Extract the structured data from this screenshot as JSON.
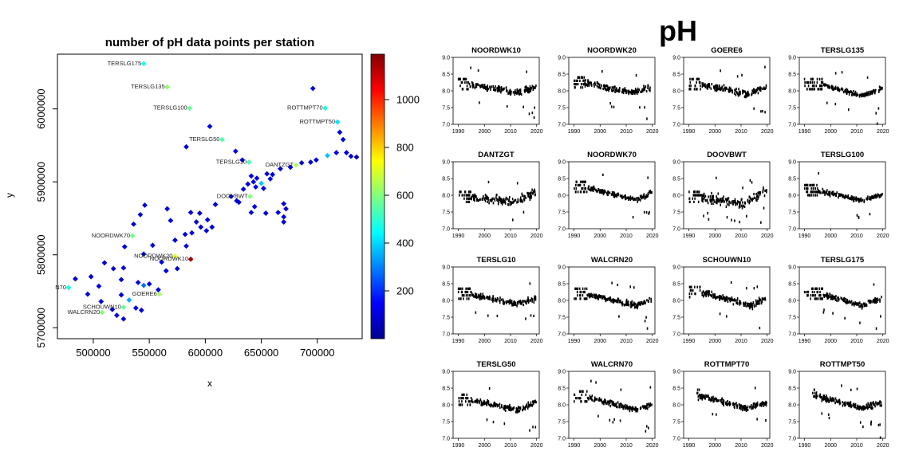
{
  "left_chart": {
    "title": "number of pH data points per station",
    "xlabel": "x",
    "ylabel": "y",
    "x_ticks": [
      "500000",
      "550000",
      "600000",
      "650000",
      "700000"
    ],
    "y_ticks": [
      "5700000",
      "5800000",
      "5900000",
      "6000000"
    ],
    "colorbar_ticks": [
      "200",
      "400",
      "600",
      "800",
      "1000"
    ]
  },
  "right_title": "pH",
  "chart_data": [
    {
      "type": "scatter",
      "title": "number of pH data points per station",
      "xlabel": "x",
      "ylabel": "y",
      "xlim": [
        468000,
        740000
      ],
      "ylim": [
        5685000,
        6075000
      ],
      "color_scale": {
        "min": 0,
        "max": 1190,
        "ticks": [
          200,
          400,
          600,
          800,
          1000
        ]
      },
      "labeled_stations": [
        {
          "label": "TERSLG175",
          "x": 545000,
          "y": 6062000,
          "count": 470
        },
        {
          "label": "TERSLG135",
          "x": 566000,
          "y": 6030000,
          "count": 620
        },
        {
          "label": "TERSLG100",
          "x": 586000,
          "y": 6001000,
          "count": 560
        },
        {
          "label": "ROTTMPT70",
          "x": 707000,
          "y": 6001000,
          "count": 480
        },
        {
          "label": "ROTTMPT50",
          "x": 718000,
          "y": 5982000,
          "count": 420
        },
        {
          "label": "TERSLG50",
          "x": 615000,
          "y": 5958000,
          "count": 540
        },
        {
          "label": "TERSLG10",
          "x": 639000,
          "y": 5927000,
          "count": 530
        },
        {
          "label": "DANTZGT",
          "x": 681000,
          "y": 5923000,
          "count": 640
        },
        {
          "label": "DOOVBWT",
          "x": 640000,
          "y": 5880000,
          "count": 600
        },
        {
          "label": "NOORDWK70",
          "x": 535000,
          "y": 5826000,
          "count": 580
        },
        {
          "label": "NOORDWK20",
          "x": 573000,
          "y": 5798000,
          "count": 700
        },
        {
          "label": "NOORDWK10",
          "x": 587000,
          "y": 5794000,
          "count": 1150
        },
        {
          "label": "N70",
          "x": 478000,
          "y": 5755000,
          "count": 480
        },
        {
          "label": "GOERE6",
          "x": 559000,
          "y": 5746000,
          "count": 640
        },
        {
          "label": "SCHOUWN10",
          "x": 527000,
          "y": 5728000,
          "count": 560
        },
        {
          "label": "WALCRN20",
          "x": 508000,
          "y": 5721000,
          "count": 600
        }
      ],
      "other_stations": [
        {
          "x": 696000,
          "y": 6028000,
          "count": 100
        },
        {
          "x": 604000,
          "y": 5976000,
          "count": 90
        },
        {
          "x": 583000,
          "y": 5948000,
          "count": 80
        },
        {
          "x": 627000,
          "y": 5942000,
          "count": 110
        },
        {
          "x": 633000,
          "y": 5930000,
          "count": 90
        },
        {
          "x": 720000,
          "y": 5968000,
          "count": 110
        },
        {
          "x": 723000,
          "y": 5958000,
          "count": 90
        },
        {
          "x": 730000,
          "y": 5935000,
          "count": 100
        },
        {
          "x": 735000,
          "y": 5934000,
          "count": 80
        },
        {
          "x": 726000,
          "y": 5940000,
          "count": 100
        },
        {
          "x": 717000,
          "y": 5940000,
          "count": 110
        },
        {
          "x": 709000,
          "y": 5936000,
          "count": 380
        },
        {
          "x": 699000,
          "y": 5930000,
          "count": 110
        },
        {
          "x": 694000,
          "y": 5927000,
          "count": 90
        },
        {
          "x": 686000,
          "y": 5926000,
          "count": 80
        },
        {
          "x": 676000,
          "y": 5920000,
          "count": 100
        },
        {
          "x": 667000,
          "y": 5918000,
          "count": 90
        },
        {
          "x": 655000,
          "y": 5911000,
          "count": 80
        },
        {
          "x": 660000,
          "y": 5910000,
          "count": 100
        },
        {
          "x": 646000,
          "y": 5905000,
          "count": 120
        },
        {
          "x": 641000,
          "y": 5908000,
          "count": 90
        },
        {
          "x": 643000,
          "y": 5900000,
          "count": 110
        },
        {
          "x": 650000,
          "y": 5898000,
          "count": 380
        },
        {
          "x": 638000,
          "y": 5897000,
          "count": 90
        },
        {
          "x": 634000,
          "y": 5890000,
          "count": 100
        },
        {
          "x": 645000,
          "y": 5893000,
          "count": 120
        },
        {
          "x": 652000,
          "y": 5891000,
          "count": 90
        },
        {
          "x": 658000,
          "y": 5904000,
          "count": 100
        },
        {
          "x": 628000,
          "y": 5874000,
          "count": 110
        },
        {
          "x": 630000,
          "y": 5872000,
          "count": 90
        },
        {
          "x": 623000,
          "y": 5880000,
          "count": 80
        },
        {
          "x": 670000,
          "y": 5870000,
          "count": 100
        },
        {
          "x": 672000,
          "y": 5863000,
          "count": 90
        },
        {
          "x": 665000,
          "y": 5858000,
          "count": 110
        },
        {
          "x": 654000,
          "y": 5857000,
          "count": 90
        },
        {
          "x": 670000,
          "y": 5852000,
          "count": 100
        },
        {
          "x": 670000,
          "y": 5845000,
          "count": 90
        },
        {
          "x": 644000,
          "y": 5866000,
          "count": 120
        },
        {
          "x": 641000,
          "y": 5858000,
          "count": 90
        },
        {
          "x": 609000,
          "y": 5869000,
          "count": 100
        },
        {
          "x": 595000,
          "y": 5857000,
          "count": 90
        },
        {
          "x": 587000,
          "y": 5858000,
          "count": 100
        },
        {
          "x": 602000,
          "y": 5848000,
          "count": 110
        },
        {
          "x": 606000,
          "y": 5838000,
          "count": 90
        },
        {
          "x": 601000,
          "y": 5833000,
          "count": 120
        },
        {
          "x": 596000,
          "y": 5838000,
          "count": 100
        },
        {
          "x": 592000,
          "y": 5845000,
          "count": 90
        },
        {
          "x": 588000,
          "y": 5830000,
          "count": 110
        },
        {
          "x": 582000,
          "y": 5828000,
          "count": 100
        },
        {
          "x": 583000,
          "y": 5812000,
          "count": 120
        },
        {
          "x": 573000,
          "y": 5820000,
          "count": 90
        },
        {
          "x": 569000,
          "y": 5847000,
          "count": 100
        },
        {
          "x": 566000,
          "y": 5863000,
          "count": 110
        },
        {
          "x": 546000,
          "y": 5868000,
          "count": 90
        },
        {
          "x": 542000,
          "y": 5855000,
          "count": 100
        },
        {
          "x": 536000,
          "y": 5842000,
          "count": 90
        },
        {
          "x": 545000,
          "y": 5801000,
          "count": 110
        },
        {
          "x": 528000,
          "y": 5811000,
          "count": 100
        },
        {
          "x": 553000,
          "y": 5813000,
          "count": 90
        },
        {
          "x": 561000,
          "y": 5790000,
          "count": 110
        },
        {
          "x": 565000,
          "y": 5778000,
          "count": 120
        },
        {
          "x": 575000,
          "y": 5781000,
          "count": 90
        },
        {
          "x": 510000,
          "y": 5789000,
          "count": 100
        },
        {
          "x": 518000,
          "y": 5781000,
          "count": 90
        },
        {
          "x": 527000,
          "y": 5782000,
          "count": 110
        },
        {
          "x": 525000,
          "y": 5766000,
          "count": 90
        },
        {
          "x": 505000,
          "y": 5757000,
          "count": 100
        },
        {
          "x": 495000,
          "y": 5746000,
          "count": 110
        },
        {
          "x": 484000,
          "y": 5767000,
          "count": 90
        },
        {
          "x": 498000,
          "y": 5770000,
          "count": 100
        },
        {
          "x": 540000,
          "y": 5762000,
          "count": 120
        },
        {
          "x": 545000,
          "y": 5758000,
          "count": 280
        },
        {
          "x": 550000,
          "y": 5760000,
          "count": 110
        },
        {
          "x": 558000,
          "y": 5752000,
          "count": 100
        },
        {
          "x": 525000,
          "y": 5745000,
          "count": 90
        },
        {
          "x": 532000,
          "y": 5738000,
          "count": 350
        },
        {
          "x": 538000,
          "y": 5727000,
          "count": 110
        },
        {
          "x": 543000,
          "y": 5724000,
          "count": 90
        },
        {
          "x": 517000,
          "y": 5725000,
          "count": 100
        },
        {
          "x": 527000,
          "y": 5712000,
          "count": 90
        },
        {
          "x": 521000,
          "y": 5717000,
          "count": 110
        },
        {
          "x": 507000,
          "y": 5736000,
          "count": 100
        }
      ]
    },
    {
      "type": "scatter",
      "title": "pH",
      "xlim": [
        1988,
        2021
      ],
      "ylim": [
        7.0,
        9.0
      ],
      "x_ticks": [
        1990,
        2000,
        2010,
        2020
      ],
      "y_ticks": [
        7.0,
        7.5,
        8.0,
        8.5,
        9.0
      ],
      "panels": [
        {
          "name": "NOORDWK10",
          "start": 1990,
          "end": 2019,
          "sparse_after": 1993,
          "early_mean": 8.2,
          "min_mean": 7.95,
          "min_year": 2012,
          "end_mean": 8.1,
          "spread": 0.13
        },
        {
          "name": "NOORDWK20",
          "start": 1990,
          "end": 2019,
          "sparse_after": 1993,
          "early_mean": 8.25,
          "min_mean": 7.95,
          "min_year": 2012,
          "end_mean": 8.1,
          "spread": 0.13
        },
        {
          "name": "GOERE6",
          "start": 1990,
          "end": 2019,
          "sparse_after": 1994,
          "early_mean": 8.2,
          "min_mean": 7.9,
          "min_year": 2013,
          "end_mean": 8.1,
          "spread": 0.15
        },
        {
          "name": "TERSLG135",
          "start": 1990,
          "end": 2019,
          "sparse_after": 1996,
          "early_mean": 8.2,
          "min_mean": 7.85,
          "min_year": 2012,
          "end_mean": 8.05,
          "spread": 0.1
        },
        {
          "name": "DANTZGT",
          "start": 1990,
          "end": 2019,
          "sparse_after": 1994,
          "early_mean": 7.95,
          "min_mean": 7.8,
          "min_year": 2011,
          "end_mean": 8.05,
          "spread": 0.18
        },
        {
          "name": "NOORDWK70",
          "start": 1990,
          "end": 2019,
          "sparse_after": 1994,
          "early_mean": 8.25,
          "min_mean": 7.85,
          "min_year": 2014,
          "end_mean": 8.05,
          "spread": 0.1
        },
        {
          "name": "DOOVBWT",
          "start": 1990,
          "end": 2019,
          "sparse_after": 1994,
          "early_mean": 7.95,
          "min_mean": 7.75,
          "min_year": 2011,
          "end_mean": 8.1,
          "spread": 0.2
        },
        {
          "name": "TERSLG100",
          "start": 1990,
          "end": 2019,
          "sparse_after": 1994,
          "early_mean": 8.15,
          "min_mean": 7.85,
          "min_year": 2012,
          "end_mean": 8.0,
          "spread": 0.1
        },
        {
          "name": "TERSLG10",
          "start": 1990,
          "end": 2019,
          "sparse_after": 1994,
          "early_mean": 8.2,
          "min_mean": 7.9,
          "min_year": 2012,
          "end_mean": 8.05,
          "spread": 0.12
        },
        {
          "name": "WALCRN20",
          "start": 1990,
          "end": 2019,
          "sparse_after": 1994,
          "early_mean": 8.2,
          "min_mean": 7.85,
          "min_year": 2014,
          "end_mean": 8.0,
          "spread": 0.12
        },
        {
          "name": "SCHOUWN10",
          "start": 1990,
          "end": 2019,
          "sparse_after": 1994,
          "early_mean": 8.25,
          "min_mean": 7.85,
          "min_year": 2014,
          "end_mean": 8.05,
          "spread": 0.13
        },
        {
          "name": "TERSLG175",
          "start": 1990,
          "end": 2019,
          "sparse_after": 1996,
          "early_mean": 8.2,
          "min_mean": 7.85,
          "min_year": 2012,
          "end_mean": 8.05,
          "spread": 0.1
        },
        {
          "name": "TERSLG50",
          "start": 1990,
          "end": 2019,
          "sparse_after": 1994,
          "early_mean": 8.15,
          "min_mean": 7.85,
          "min_year": 2013,
          "end_mean": 8.05,
          "spread": 0.12
        },
        {
          "name": "WALCRN70",
          "start": 1990,
          "end": 2019,
          "sparse_after": 1994,
          "early_mean": 8.25,
          "min_mean": 7.85,
          "min_year": 2014,
          "end_mean": 8.0,
          "spread": 0.1
        },
        {
          "name": "ROTTMPT70",
          "start": 1993,
          "end": 2019,
          "sparse_after": 1993,
          "early_mean": 8.3,
          "min_mean": 7.9,
          "min_year": 2012,
          "end_mean": 8.05,
          "spread": 0.12
        },
        {
          "name": "ROTTMPT50",
          "start": 1993,
          "end": 2019,
          "sparse_after": 1993,
          "early_mean": 8.3,
          "min_mean": 7.9,
          "min_year": 2012,
          "end_mean": 8.05,
          "spread": 0.12
        }
      ]
    }
  ]
}
